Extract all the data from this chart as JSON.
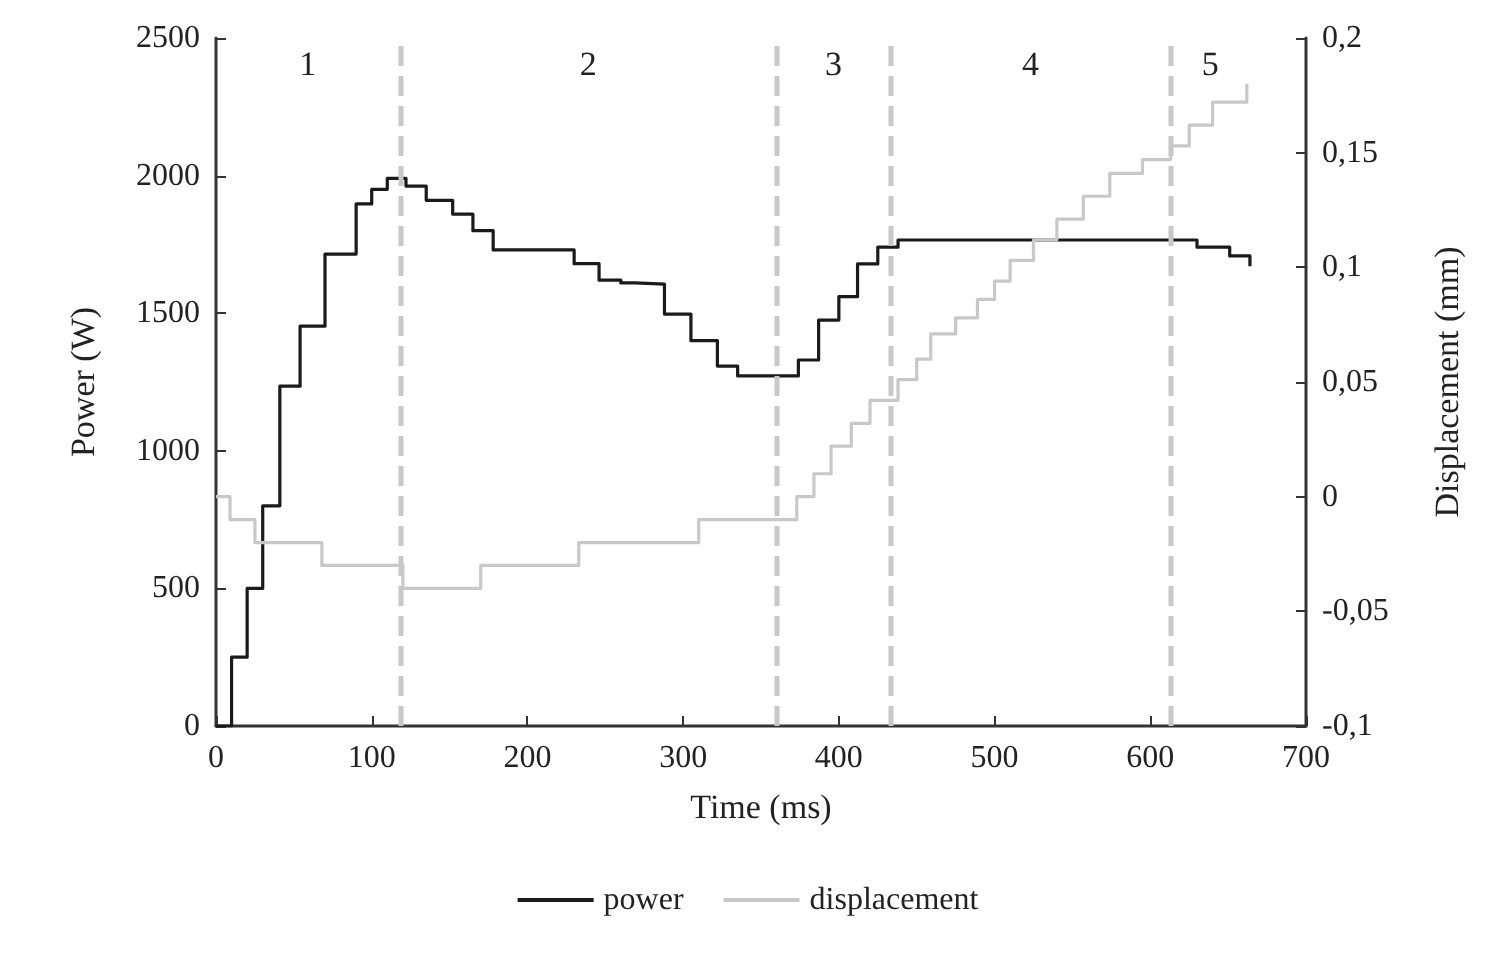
{
  "chart_data": {
    "type": "step",
    "xlabel": "Time (ms)",
    "ylabel": "Power (W)",
    "y2label": "Displacement (mm)",
    "x": [
      0,
      10,
      20,
      30,
      41,
      54,
      70,
      90,
      100,
      110,
      122,
      135,
      152,
      165,
      178,
      195,
      211,
      230,
      246,
      260,
      269,
      288,
      305,
      322,
      335,
      357,
      374,
      387,
      400,
      412,
      425,
      438,
      460,
      500,
      540,
      580,
      613,
      630,
      651,
      664
    ],
    "series": [
      {
        "name": "power",
        "color": "#1a1a1a",
        "values": [
          0,
          250,
          500,
          800,
          1235,
          1453,
          1715,
          1897,
          1950,
          1990,
          1962,
          1910,
          1860,
          1800,
          1730,
          1730,
          1730,
          1680,
          1620,
          1610,
          1606,
          1497,
          1400,
          1308,
          1272,
          1272,
          1330,
          1475,
          1560,
          1679,
          1740,
          1766,
          1766,
          1766,
          1766,
          1766,
          1766,
          1740,
          1708,
          1671
        ]
      },
      {
        "name": "displacement",
        "color": "#c8c8c8",
        "axis": "y2",
        "x": [
          0,
          9,
          25,
          68,
          120,
          170,
          233,
          310,
          365,
          373,
          384,
          395,
          408,
          420,
          438,
          450,
          459,
          475,
          489,
          500,
          510,
          525,
          540,
          557,
          574,
          595,
          613,
          625,
          640,
          662
        ],
        "values": [
          0,
          -0.01,
          -0.02,
          -0.03,
          -0.04,
          -0.03,
          -0.02,
          -0.01,
          -0.01,
          0,
          0.01,
          0.022,
          0.032,
          0.042,
          0.051,
          0.06,
          0.071,
          0.078,
          0.086,
          0.094,
          0.103,
          0.112,
          0.121,
          0.131,
          0.141,
          0.147,
          0.153,
          0.162,
          0.172,
          0.18
        ]
      }
    ],
    "xlim": [
      0,
      700
    ],
    "xticks": [
      0,
      100,
      200,
      300,
      400,
      500,
      600,
      700
    ],
    "ylim": [
      0,
      2500
    ],
    "yticks": [
      0,
      500,
      1000,
      1500,
      2000,
      2500
    ],
    "y2lim": [
      -0.1,
      0.2
    ],
    "y2ticks": [
      {
        "value": -0.1,
        "label": "-0,1"
      },
      {
        "value": -0.05,
        "label": "-0,05"
      },
      {
        "value": 0,
        "label": "0"
      },
      {
        "value": 0.05,
        "label": "0,05"
      },
      {
        "value": 0.1,
        "label": "0,1"
      },
      {
        "value": 0.15,
        "label": "0,15"
      },
      {
        "value": 0.2,
        "label": "0,2"
      }
    ],
    "ref_lines": [
      {
        "axis": "x",
        "value": 118,
        "color": "#c8c8c8",
        "line_style": "dashed"
      },
      {
        "axis": "x",
        "value": 360,
        "color": "#c8c8c8",
        "line_style": "dashed"
      },
      {
        "axis": "x",
        "value": 433,
        "color": "#c8c8c8",
        "line_style": "dashed"
      },
      {
        "axis": "x",
        "value": 613,
        "color": "#c8c8c8",
        "line_style": "dashed"
      }
    ],
    "annotations": [
      "1",
      "2",
      "3",
      "4",
      "5"
    ],
    "grid": false,
    "legend": "bottom",
    "marker": "none",
    "line_style": "solid"
  }
}
